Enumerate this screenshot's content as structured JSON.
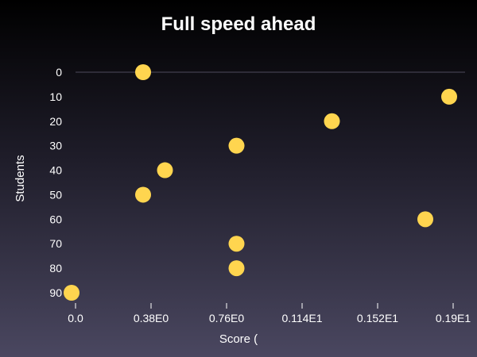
{
  "chart_data": {
    "type": "scatter",
    "title": "Full speed ahead",
    "xlabel": "Score (",
    "ylabel": "Students",
    "x_ticks": [
      {
        "value": 0.0,
        "label": "0.0"
      },
      {
        "value": 0.38,
        "label": "0.38E0"
      },
      {
        "value": 0.76,
        "label": "0.76E0"
      },
      {
        "value": 1.14,
        "label": "0.114E1"
      },
      {
        "value": 1.52,
        "label": "0.152E1"
      },
      {
        "value": 1.9,
        "label": "0.19E1"
      }
    ],
    "y_ticks": [
      {
        "value": 0,
        "label": "0"
      },
      {
        "value": 10,
        "label": "10"
      },
      {
        "value": 20,
        "label": "20"
      },
      {
        "value": 30,
        "label": "30"
      },
      {
        "value": 40,
        "label": "40"
      },
      {
        "value": 50,
        "label": "50"
      },
      {
        "value": 60,
        "label": "60"
      },
      {
        "value": 70,
        "label": "70"
      },
      {
        "value": 80,
        "label": "80"
      },
      {
        "value": 90,
        "label": "90"
      }
    ],
    "xlim": [
      0,
      1.9
    ],
    "ylim": [
      0,
      90
    ],
    "y_inverted": true,
    "grid": "zero line only",
    "points": [
      {
        "x": 0.34,
        "y": 0
      },
      {
        "x": 1.88,
        "y": 10
      },
      {
        "x": 1.29,
        "y": 20
      },
      {
        "x": 0.81,
        "y": 30
      },
      {
        "x": 0.45,
        "y": 40
      },
      {
        "x": 0.34,
        "y": 50
      },
      {
        "x": 1.76,
        "y": 60
      },
      {
        "x": 0.81,
        "y": 70
      },
      {
        "x": 0.81,
        "y": 80
      },
      {
        "x": -0.02,
        "y": 90
      }
    ],
    "colors": {
      "marker": "#ffd54f",
      "text": "#ffffff",
      "zero_line": "#2e2c38"
    }
  }
}
